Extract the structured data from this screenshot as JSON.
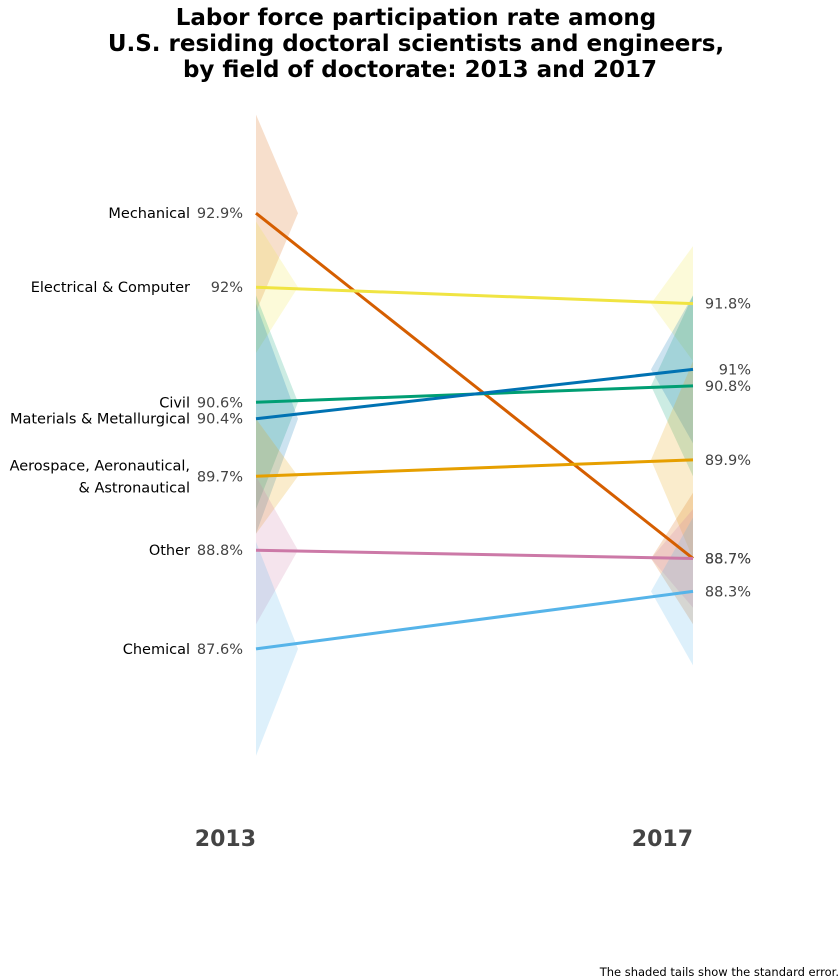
{
  "chart_data": {
    "type": "line",
    "title_lines": [
      "Labor force participation rate among",
      "U.S. residing doctoral scientists and engineers,",
      "by field of doctorate: 2013 and 2017"
    ],
    "x": [
      "2013",
      "2017"
    ],
    "ylim": [
      86.1,
      94.3
    ],
    "footnote": "The shaded tails show the standard error.",
    "series": [
      {
        "key": "mechanical",
        "name": "Mechanical",
        "values": [
          92.9,
          88.7
        ],
        "start_label": "92.9%",
        "end_label": "88.7%",
        "se": [
          1.2,
          0.8
        ],
        "color": "#D55E00"
      },
      {
        "key": "electrical",
        "name": "Electrical & Computer",
        "values": [
          92.0,
          91.8
        ],
        "start_label": "92%",
        "end_label": "91.8%",
        "se": [
          0.8,
          0.7
        ],
        "color": "#F0E442"
      },
      {
        "key": "civil",
        "name": "Civil",
        "values": [
          90.6,
          90.8
        ],
        "start_label": "90.6%",
        "end_label": "90.8%",
        "se": [
          1.3,
          1.1
        ],
        "color": "#009E73"
      },
      {
        "key": "materials",
        "name": "Materials & Metallurgical",
        "values": [
          90.4,
          91.0
        ],
        "start_label": "90.4%",
        "end_label": "91%",
        "se": [
          1.4,
          0.9
        ],
        "color": "#0072B2"
      },
      {
        "key": "aerospace",
        "name_lines": [
          "Aerospace, Aeronautical,",
          "& Astronautical"
        ],
        "values": [
          89.7,
          89.9
        ],
        "start_label": "89.7%",
        "end_label": "89.9%",
        "se": [
          0.7,
          1.2
        ],
        "color": "#E69F00"
      },
      {
        "key": "other",
        "name": "Other",
        "values": [
          88.8,
          88.7
        ],
        "start_label": "88.8%",
        "end_label": "88.7%",
        "se": [
          0.9,
          0.6
        ],
        "color": "#CC79A7"
      },
      {
        "key": "chemical",
        "name": "Chemical",
        "values": [
          87.6,
          88.3
        ],
        "start_label": "87.6%",
        "end_label": "88.3%",
        "se": [
          1.3,
          0.9
        ],
        "color": "#56B4E9"
      }
    ]
  }
}
